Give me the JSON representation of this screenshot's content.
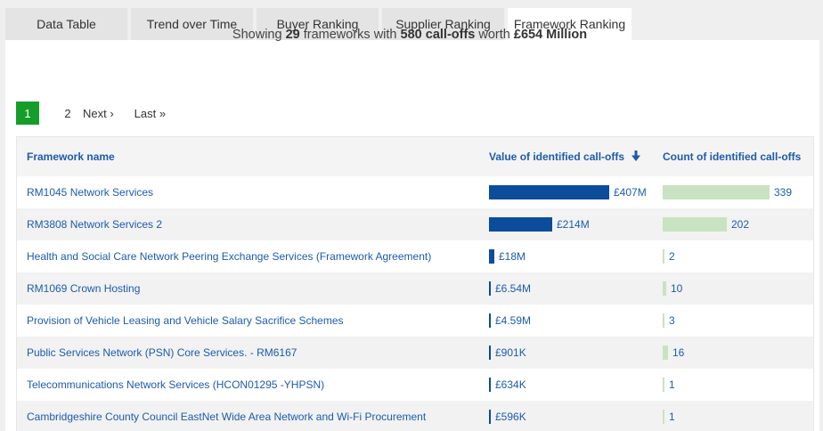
{
  "tabs": [
    {
      "label": "Data Table",
      "active": false
    },
    {
      "label": "Trend over Time",
      "active": false
    },
    {
      "label": "Buyer Ranking",
      "active": false
    },
    {
      "label": "Supplier Ranking",
      "active": false
    },
    {
      "label": "Framework Ranking",
      "active": true
    }
  ],
  "summary": {
    "prefix": "Showing ",
    "count": "29",
    "mid1": " frameworks with ",
    "calloffs": "580 call-offs",
    "mid2": " worth ",
    "value": "£654 Million"
  },
  "pagination": {
    "current": "1",
    "page2": "2",
    "next": "Next ›",
    "last": "Last »"
  },
  "table": {
    "headers": {
      "name": "Framework name",
      "value": "Value of identified call-offs",
      "count": "Count of identified call-offs"
    },
    "sort": {
      "column": "value",
      "direction": "descending",
      "icon": "arrow-down-icon"
    },
    "max_value_millions": 407,
    "max_count": 339,
    "rows": [
      {
        "name": "RM1045 Network Services",
        "value_label": "£407M",
        "value_millions": 407,
        "count": 339
      },
      {
        "name": "RM3808 Network Services 2",
        "value_label": "£214M",
        "value_millions": 214,
        "count": 202
      },
      {
        "name": "Health and Social Care Network Peering Exchange Services (Framework Agreement)",
        "value_label": "£18M",
        "value_millions": 18,
        "count": 2
      },
      {
        "name": "RM1069 Crown Hosting",
        "value_label": "£6.54M",
        "value_millions": 6.54,
        "count": 10
      },
      {
        "name": "Provision of Vehicle Leasing and Vehicle Salary Sacrifice Schemes",
        "value_label": "£4.59M",
        "value_millions": 4.59,
        "count": 3
      },
      {
        "name": "Public Services Network (PSN) Core Services. - RM6167",
        "value_label": "£901K",
        "value_millions": 0.901,
        "count": 16
      },
      {
        "name": "Telecommunications Network Services (HCON01295 -YHPSN)",
        "value_label": "£634K",
        "value_millions": 0.634,
        "count": 1
      },
      {
        "name": "Cambridgeshire County Council EastNet Wide Area Network and Wi-Fi Procurement",
        "value_label": "£596K",
        "value_millions": 0.596,
        "count": 1
      }
    ]
  },
  "colors": {
    "value_bar": "#0b4c9b",
    "count_bar": "#c8e3c1",
    "active_page": "#159d29",
    "link": "#1d5bac"
  }
}
